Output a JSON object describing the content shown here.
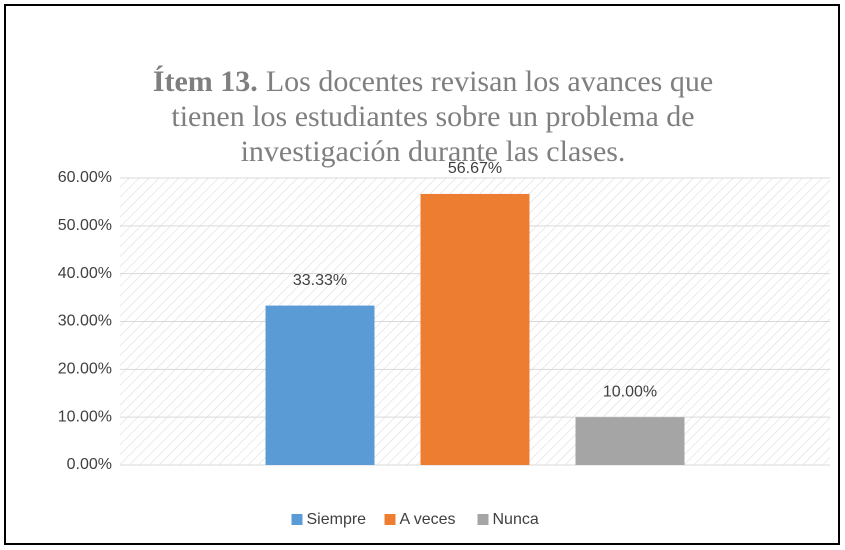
{
  "chart_data": {
    "type": "bar",
    "title": "Ítem 13.",
    "subtitle": "Los docentes revisan los avances que tienen los estudiantes sobre un problema de investigación durante las clases.",
    "categories": [
      null
    ],
    "series": [
      {
        "name": "Siempre",
        "color": "#5b9bd5",
        "values": [
          33.33
        ],
        "value_labels": [
          "33.33%"
        ]
      },
      {
        "name": "A veces",
        "color": "#ed7d31",
        "values": [
          56.67
        ],
        "value_labels": [
          "56.67%"
        ]
      },
      {
        "name": "Nunca",
        "color": "#a5a5a5",
        "values": [
          10
        ],
        "value_labels": [
          "10.00%"
        ]
      }
    ],
    "ylim": [
      0,
      60
    ],
    "yticks": [
      {
        "value": 0,
        "label": "0.00%"
      },
      {
        "value": 10,
        "label": "10.00%"
      },
      {
        "value": 20,
        "label": "20.00%"
      },
      {
        "value": 30,
        "label": "30.00%"
      },
      {
        "value": 40,
        "label": "40.00%"
      },
      {
        "value": 50,
        "label": "50.00%"
      },
      {
        "value": 60,
        "label": "60.00%"
      }
    ],
    "grid": true,
    "legend": "bottom"
  }
}
